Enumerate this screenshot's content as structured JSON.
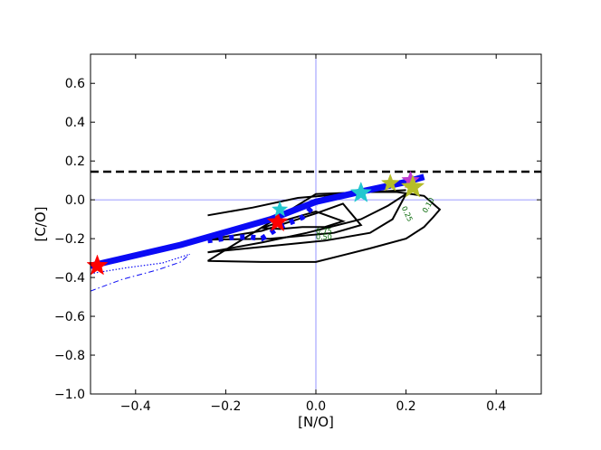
{
  "chart_data": {
    "type": "line",
    "xlabel": "[N/O]",
    "ylabel": "[C/O]",
    "xlim": [
      -0.5,
      0.5
    ],
    "ylim": [
      -1.0,
      0.75
    ],
    "xticks": [
      -0.4,
      -0.2,
      0.0,
      0.2,
      0.4
    ],
    "xtick_labels": [
      "−0.4",
      "−0.2",
      "0.0",
      "0.2",
      "0.4"
    ],
    "yticks": [
      -1.0,
      -0.8,
      -0.6,
      -0.4,
      -0.2,
      0.0,
      0.2,
      0.4,
      0.6
    ],
    "ytick_labels": [
      "−1.0",
      "−0.8",
      "−0.6",
      "−0.4",
      "−0.2",
      "0.0",
      "0.2",
      "0.4",
      "0.6"
    ],
    "reference_lines": [
      {
        "orientation": "vertical",
        "x": 0.0,
        "color": "#7b7bff"
      },
      {
        "orientation": "horizontal",
        "y": 0.0,
        "color": "#7b7bff"
      },
      {
        "orientation": "horizontal",
        "y": 0.145,
        "style": "dashed",
        "color": "#000000"
      }
    ],
    "series": [
      {
        "style": "thick",
        "color": "#0a0af5",
        "x": [
          -0.5,
          -0.3,
          -0.1,
          0.0,
          0.1,
          0.2,
          0.24
        ],
        "y": [
          -0.34,
          -0.232,
          -0.1,
          -0.01,
          0.042,
          0.092,
          0.118
        ]
      },
      {
        "style": "dashed",
        "color": "#0a0af5",
        "x": [
          -0.24,
          -0.19,
          -0.15,
          -0.12,
          -0.08,
          -0.03,
          0.0
        ],
        "y": [
          -0.21,
          -0.195,
          -0.19,
          -0.2,
          -0.14,
          -0.09,
          -0.02
        ]
      },
      {
        "style": "dotted",
        "color": "#0a0af5",
        "x": [
          -0.5,
          -0.42,
          -0.34,
          -0.28
        ],
        "y": [
          -0.38,
          -0.35,
          -0.325,
          -0.28
        ]
      },
      {
        "style": "dashdot",
        "color": "#0a0af5",
        "x": [
          -0.5,
          -0.43,
          -0.35,
          -0.3,
          -0.28
        ],
        "y": [
          -0.47,
          -0.41,
          -0.36,
          -0.32,
          -0.28
        ]
      }
    ],
    "contours": [
      {
        "label": "0.75",
        "x": [
          -0.12,
          -0.06,
          0.0,
          0.06,
          0.02,
          -0.03,
          -0.08,
          -0.12
        ],
        "y": [
          -0.145,
          -0.1,
          -0.06,
          -0.11,
          -0.14,
          -0.14,
          -0.15,
          -0.145
        ]
      },
      {
        "label": "0.50",
        "x": [
          -0.24,
          -0.12,
          0.0,
          0.06,
          0.1,
          0.04,
          -0.1,
          -0.24
        ],
        "y": [
          -0.205,
          -0.16,
          -0.07,
          -0.02,
          -0.13,
          -0.17,
          -0.2,
          -0.205
        ]
      },
      {
        "label": "0.25",
        "x": [
          -0.24,
          -0.12,
          -0.02,
          0.1,
          0.16,
          0.2,
          0.17,
          0.12,
          0.02,
          -0.24
        ],
        "y": [
          -0.27,
          -0.22,
          -0.17,
          -0.1,
          -0.03,
          0.03,
          -0.1,
          -0.17,
          -0.21,
          -0.27
        ]
      },
      {
        "label": "0.10",
        "x": [
          -0.24,
          -0.12,
          0.0,
          0.12,
          0.2,
          0.24,
          0.26,
          0.275,
          0.24,
          0.18,
          0.12,
          0.0,
          -0.24
        ],
        "y": [
          -0.315,
          -0.32,
          -0.32,
          -0.25,
          -0.2,
          -0.14,
          -0.09,
          -0.05,
          0.02,
          0.04,
          0.04,
          0.03,
          -0.315
        ]
      },
      {
        "label": "",
        "x": [
          -0.24,
          -0.14,
          -0.04,
          0.06,
          0.12,
          0.2
        ],
        "y": [
          -0.08,
          -0.04,
          0.01,
          0.03,
          0.04,
          0.05
        ]
      }
    ],
    "stars": [
      {
        "x": -0.485,
        "y": -0.34,
        "color": "#ff0000",
        "size": 20
      },
      {
        "x": -0.085,
        "y": -0.115,
        "color": "#ff0000",
        "size": 20
      },
      {
        "x": -0.08,
        "y": -0.05,
        "color": "#22c7d0",
        "size": 15
      },
      {
        "x": 0.1,
        "y": 0.035,
        "color": "#22c7d0",
        "size": 20
      },
      {
        "x": 0.165,
        "y": 0.085,
        "color": "#b5bd28",
        "size": 17
      },
      {
        "x": 0.21,
        "y": 0.1,
        "color": "#c03cd0",
        "size": 17
      },
      {
        "x": 0.215,
        "y": 0.065,
        "color": "#b5bd28",
        "size": 22
      }
    ]
  }
}
